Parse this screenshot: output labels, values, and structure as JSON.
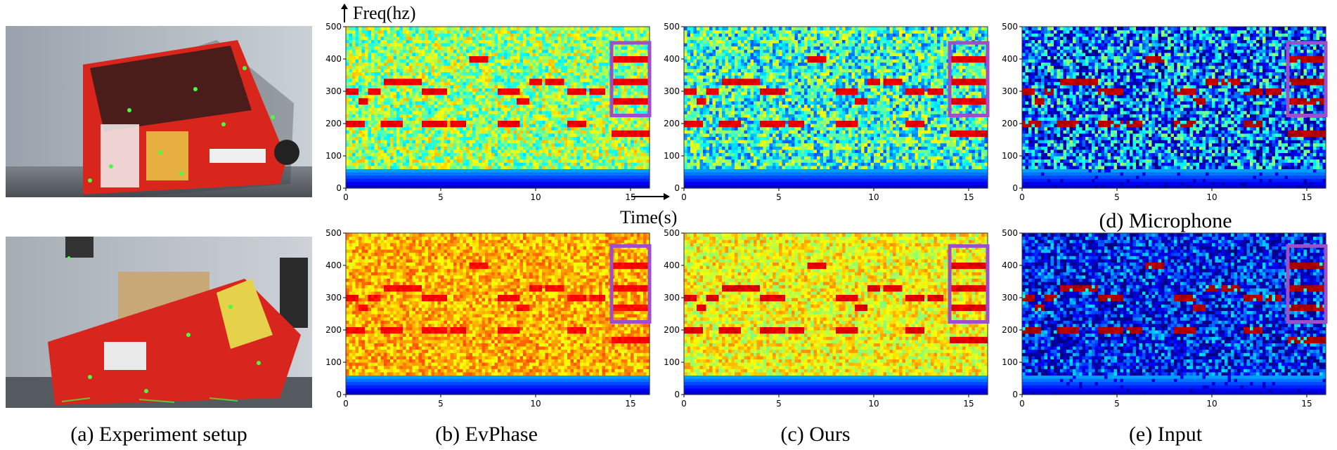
{
  "figure": {
    "captions": {
      "a": "(a) Experiment setup",
      "b": "(b) EvPhase",
      "c": "(c) Ours",
      "d": "(d) Microphone",
      "e": "(e) Input"
    },
    "axis_labels": {
      "freq": "Freq(hz)",
      "time": "Time(s)"
    },
    "colors": {
      "highlight_box": "#9b4fc8",
      "spectrogram_red": "#d40000",
      "spectrogram_blue": "#00007f"
    }
  },
  "chart_data": [
    {
      "id": "b-top",
      "type": "heatmap",
      "title": "(b) EvPhase",
      "xlabel": "Time(s)",
      "ylabel": "Freq(hz)",
      "xlim": [
        0,
        16
      ],
      "ylim": [
        0,
        500
      ],
      "x_ticks": [
        "0",
        "5",
        "10",
        "15"
      ],
      "y_ticks": [
        "0",
        "100",
        "200",
        "300",
        "400",
        "500"
      ],
      "highlight": {
        "t": [
          14,
          16
        ],
        "f": [
          225,
          450
        ]
      }
    },
    {
      "id": "c-top",
      "type": "heatmap",
      "title": "(c) Ours",
      "xlabel": "Time(s)",
      "ylabel": "Freq(hz)",
      "xlim": [
        0,
        16
      ],
      "ylim": [
        0,
        500
      ],
      "x_ticks": [
        "0",
        "5",
        "10",
        "15"
      ],
      "y_ticks": [
        "0",
        "100",
        "200",
        "300",
        "400",
        "500"
      ],
      "highlight": {
        "t": [
          14,
          16
        ],
        "f": [
          225,
          450
        ]
      }
    },
    {
      "id": "d-top",
      "type": "heatmap",
      "title": "(d) Microphone",
      "xlabel": "Time(s)",
      "ylabel": "Freq(hz)",
      "xlim": [
        0,
        16
      ],
      "ylim": [
        0,
        500
      ],
      "x_ticks": [
        "0",
        "5",
        "10",
        "15"
      ],
      "y_ticks": [
        "0",
        "100",
        "200",
        "300",
        "400",
        "500"
      ],
      "highlight": {
        "t": [
          14,
          16
        ],
        "f": [
          225,
          450
        ]
      }
    },
    {
      "id": "b-bot",
      "type": "heatmap",
      "title": "(b) EvPhase",
      "xlabel": "Time(s)",
      "ylabel": "Freq(hz)",
      "xlim": [
        0,
        16
      ],
      "ylim": [
        0,
        500
      ],
      "x_ticks": [
        "0",
        "5",
        "10",
        "15"
      ],
      "y_ticks": [
        "0",
        "100",
        "200",
        "300",
        "400",
        "500"
      ],
      "highlight": {
        "t": [
          14,
          16
        ],
        "f": [
          225,
          460
        ]
      }
    },
    {
      "id": "c-bot",
      "type": "heatmap",
      "title": "(c) Ours",
      "xlabel": "Time(s)",
      "ylabel": "Freq(hz)",
      "xlim": [
        0,
        16
      ],
      "ylim": [
        0,
        500
      ],
      "x_ticks": [
        "0",
        "5",
        "10",
        "15"
      ],
      "y_ticks": [
        "0",
        "100",
        "200",
        "300",
        "400",
        "500"
      ],
      "highlight": {
        "t": [
          14,
          16
        ],
        "f": [
          225,
          460
        ]
      }
    },
    {
      "id": "e-bot",
      "type": "heatmap",
      "title": "(e) Input",
      "xlabel": "Time(s)",
      "ylabel": "Freq(hz)",
      "xlim": [
        0,
        16
      ],
      "ylim": [
        0,
        500
      ],
      "x_ticks": [
        "0",
        "5",
        "10",
        "15"
      ],
      "y_ticks": [
        "0",
        "100",
        "200",
        "300",
        "400",
        "500"
      ],
      "highlight": {
        "t": [
          14,
          16
        ],
        "f": [
          225,
          460
        ]
      }
    }
  ]
}
